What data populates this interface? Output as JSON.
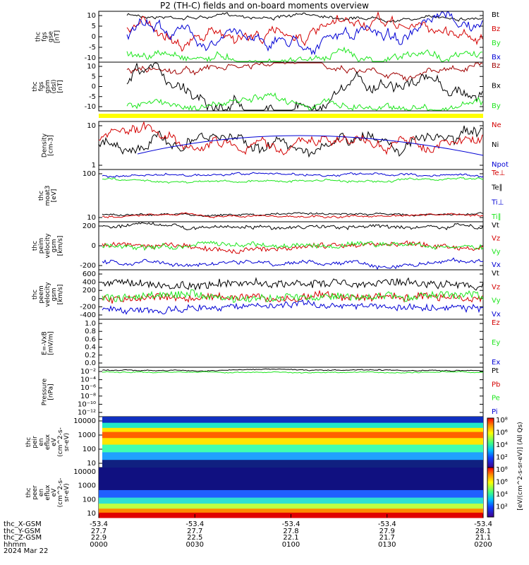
{
  "title": "P2 (TH-C) fields and on-board moments overview",
  "colors": {
    "black": "#000000",
    "red": "#d40000",
    "blue": "#0000d4",
    "green": "#1ee61e",
    "darkred": "#a00000",
    "yellow": "#ffff00"
  },
  "chart_data": [
    {
      "type": "line",
      "ylabel": [
        "thc",
        "fgs",
        "gse",
        "[nT]"
      ],
      "yticks": [
        "10",
        "5",
        "0",
        "-5",
        "-10"
      ],
      "ylim": [
        -12,
        12
      ],
      "series": [
        {
          "name": "Bt",
          "color": "black"
        },
        {
          "name": "Bz",
          "color": "red"
        },
        {
          "name": "By",
          "color": "green"
        },
        {
          "name": "Bx",
          "color": "blue"
        }
      ]
    },
    {
      "type": "line",
      "ylabel": [
        "thc",
        "fgs",
        "gsm",
        "(dsl)",
        "[nT]"
      ],
      "yticks": [
        "10",
        "5",
        "0",
        "-5",
        "-10"
      ],
      "ylim": [
        -13,
        11
      ],
      "series": [
        {
          "name": "Bz",
          "color": "darkred"
        },
        {
          "name": "Bx",
          "color": "black"
        },
        {
          "name": "By",
          "color": "green"
        }
      ]
    },
    {
      "type": "line",
      "ylabel": [
        "Density",
        "[cm-3]"
      ],
      "yticks": [
        "10",
        "1"
      ],
      "log": true,
      "series": [
        {
          "name": "Ne",
          "color": "red"
        },
        {
          "name": "Ni",
          "color": "black"
        },
        {
          "name": "Npot",
          "color": "blue"
        }
      ]
    },
    {
      "type": "line",
      "ylabel": [
        "thc",
        "moat3",
        "[eV]"
      ],
      "yticks": [
        "100",
        "10"
      ],
      "log": true,
      "series": [
        {
          "name": "Te⊥",
          "color": "red"
        },
        {
          "name": "Te∥",
          "color": "black"
        },
        {
          "name": "Ti⊥",
          "color": "blue"
        },
        {
          "name": "Ti∥",
          "color": "green"
        }
      ]
    },
    {
      "type": "line",
      "ylabel": [
        "thc",
        "peim",
        "velocity",
        "gsm",
        "[km/s]"
      ],
      "yticks": [
        "200",
        "0",
        "-200"
      ],
      "ylim": [
        -330,
        330
      ],
      "series": [
        {
          "name": "Vt",
          "color": "black"
        },
        {
          "name": "Vz",
          "color": "red"
        },
        {
          "name": "Vy",
          "color": "green"
        },
        {
          "name": "Vx",
          "color": "blue"
        }
      ]
    },
    {
      "type": "line",
      "ylabel": [
        "thc",
        "peem",
        "velocity",
        "gsm",
        "[km/s]"
      ],
      "yticks": [
        "600",
        "400",
        "200",
        "0",
        "-200",
        "-400"
      ],
      "ylim": [
        -600,
        700
      ],
      "series": [
        {
          "name": "Vt",
          "color": "black"
        },
        {
          "name": "Vz",
          "color": "red"
        },
        {
          "name": "Vy",
          "color": "green"
        },
        {
          "name": "Vx",
          "color": "blue"
        }
      ]
    },
    {
      "type": "line",
      "ylabel": [
        "E=-VxB",
        "[mV/m]"
      ],
      "yticks": [
        "1.0",
        "0.8",
        "0.6",
        "0.4",
        "0.2",
        "0.0"
      ],
      "ylim": [
        0,
        1
      ],
      "series": [
        {
          "name": "Ez",
          "color": "red"
        },
        {
          "name": "Ey",
          "color": "green"
        },
        {
          "name": "Ex",
          "color": "blue"
        }
      ]
    },
    {
      "type": "line",
      "ylabel": [
        "Pressure",
        "[nPa]"
      ],
      "yticks": [
        "10⁻²",
        "10⁻⁴",
        "10⁻⁶",
        "10⁻⁸",
        "10⁻¹⁰",
        "10⁻¹²"
      ],
      "log": true,
      "series": [
        {
          "name": "Pt",
          "color": "black"
        },
        {
          "name": "Pb",
          "color": "red"
        },
        {
          "name": "Pe",
          "color": "green"
        },
        {
          "name": "Pi",
          "color": "blue"
        }
      ]
    },
    {
      "type": "heatmap",
      "ylabel": [
        "thc",
        "peir",
        "en",
        "eflux",
        "eV",
        "(cm^2-s-",
        "sr-eV)"
      ],
      "yticks": [
        "10000",
        "1000",
        "100",
        "10"
      ],
      "log": true
    },
    {
      "type": "heatmap",
      "ylabel": [
        "thc",
        "peer",
        "en",
        "eflux",
        "eV",
        "(cm^2-s-",
        "sr-eV)"
      ],
      "yticks": [
        "10000",
        "1000",
        "100",
        "10"
      ],
      "log": true
    }
  ],
  "colorbar": {
    "label": "[eV/(cm^2-s-sr-eV)] (All Qs)",
    "ticks": [
      "10⁸",
      "10⁶",
      "10⁴",
      "10²",
      "10⁸",
      "10⁶",
      "10⁴",
      "10²"
    ]
  },
  "footer": {
    "rows": [
      "thc_X-GSM",
      "thc_Y-GSM",
      "thc_Z-GSM",
      "hhmm",
      "2024 Mar 22"
    ],
    "cols": [
      [
        "-53.4",
        "27.7",
        "22.9",
        "0000"
      ],
      [
        "-53.4",
        "27.7",
        "22.5",
        "0030"
      ],
      [
        "-53.4",
        "27.8",
        "22.1",
        "0100"
      ],
      [
        "-53.4",
        "27.9",
        "21.7",
        "0130"
      ],
      [
        "-53.4",
        "28.1",
        "21.1",
        "0200"
      ]
    ]
  }
}
